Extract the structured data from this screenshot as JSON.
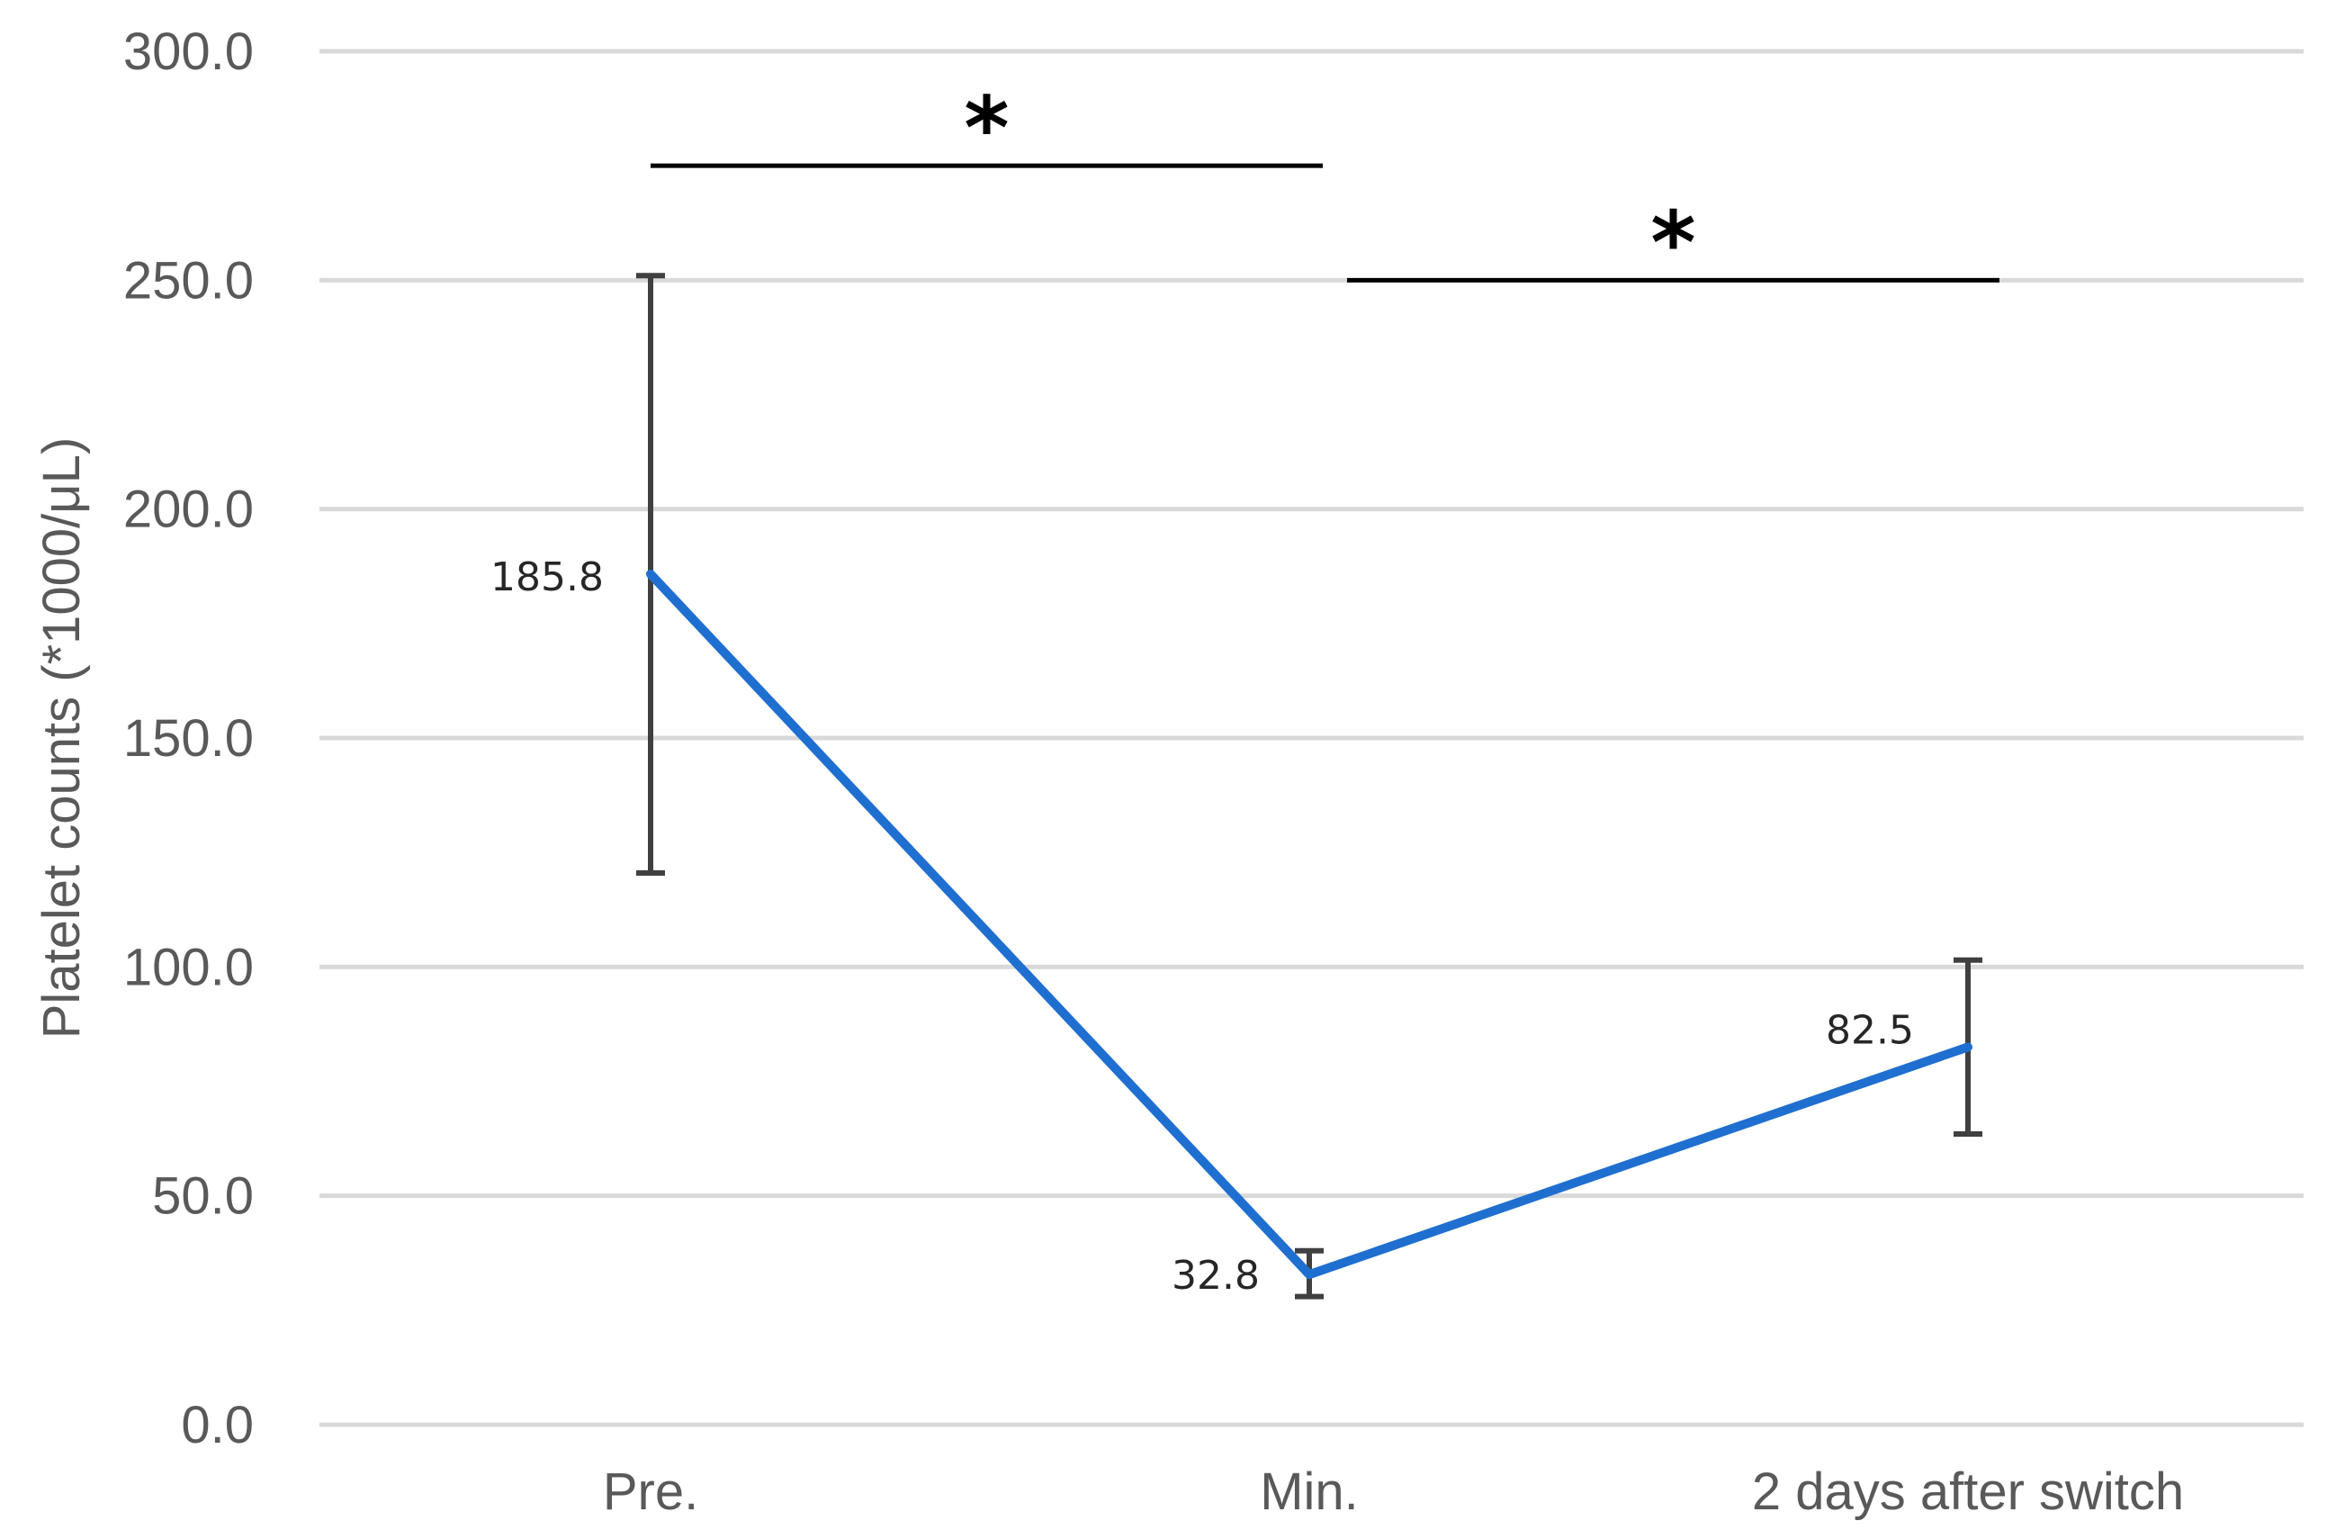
{
  "chart_data": {
    "type": "line",
    "title": "",
    "xlabel": "",
    "ylabel": "Platelet counts (*1000/μL)",
    "categories": [
      "Pre.",
      "Min.",
      "2 days after switch"
    ],
    "series": [
      {
        "values": [
          185.8,
          32.8,
          82.5
        ],
        "error_low": [
          120.5,
          28.0,
          63.5
        ],
        "error_high": [
          251.0,
          38.0,
          101.5
        ],
        "color": "#1f6fd0"
      }
    ],
    "data_labels": [
      "185.8",
      "32.8",
      "82.5"
    ],
    "ylim": [
      0,
      300
    ],
    "yticks": [
      0,
      50,
      100,
      150,
      200,
      250,
      300
    ],
    "ytick_labels": [
      "0.0",
      "50.0",
      "100.0",
      "150.0",
      "200.0",
      "250.0",
      "300.0"
    ],
    "grid": true,
    "significance": [
      {
        "from": "Pre.",
        "to": "Min.",
        "level": 275,
        "label": "*"
      },
      {
        "from": "Min.",
        "to": "2 days after switch",
        "level": 250,
        "label": "*"
      }
    ],
    "colors": {
      "grid": "#d9d9d9",
      "error_bar": "#404040",
      "text": "#595959",
      "bracket": "#000000"
    }
  }
}
